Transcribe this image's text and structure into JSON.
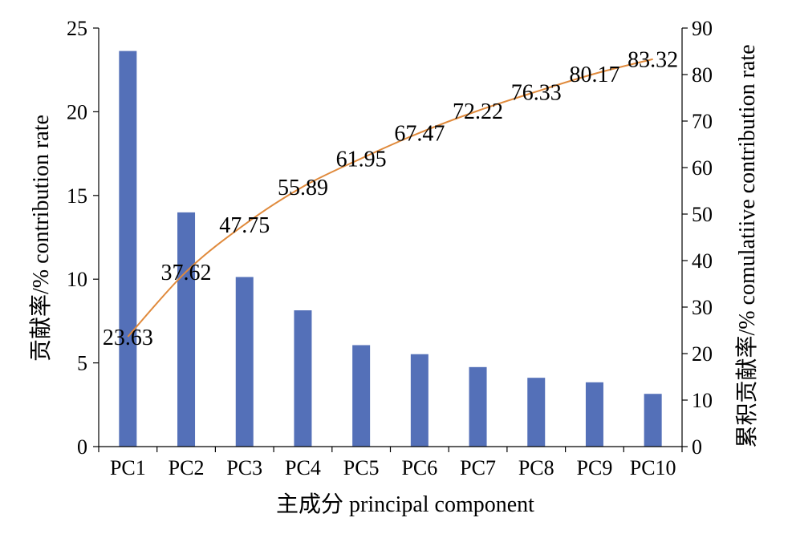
{
  "chart_data": {
    "type": "bar",
    "categories": [
      "PC1",
      "PC2",
      "PC3",
      "PC4",
      "PC5",
      "PC6",
      "PC7",
      "PC8",
      "PC9",
      "PC10"
    ],
    "series": [
      {
        "type": "bar",
        "axis": "left",
        "values": [
          23.63,
          13.99,
          10.13,
          8.14,
          6.06,
          5.52,
          4.75,
          4.11,
          3.84,
          3.15
        ]
      },
      {
        "type": "line",
        "axis": "right",
        "values": [
          23.63,
          37.62,
          47.75,
          55.89,
          61.95,
          67.47,
          72.22,
          76.33,
          80.17,
          83.32
        ],
        "labels": [
          "23.63",
          "37.62",
          "47.75",
          "55.89",
          "61.95",
          "67.47",
          "72.22",
          "76.33",
          "80.17",
          "83.32"
        ]
      }
    ],
    "xlabel": "主成分 principal component",
    "ylabel": "贡献率/% contribution rate",
    "y2label": "累积贡献率/% comulatiive contribution rate",
    "ylim": [
      0,
      25
    ],
    "y2lim": [
      0,
      90
    ],
    "yticks": [
      0,
      5,
      10,
      15,
      20,
      25
    ],
    "y2ticks": [
      0,
      10,
      20,
      30,
      40,
      50,
      60,
      70,
      80,
      90
    ],
    "colors": {
      "bar": "#5470B8",
      "line": "#E08A3C",
      "axis": "#000000"
    },
    "grid": false,
    "legend": "none"
  }
}
